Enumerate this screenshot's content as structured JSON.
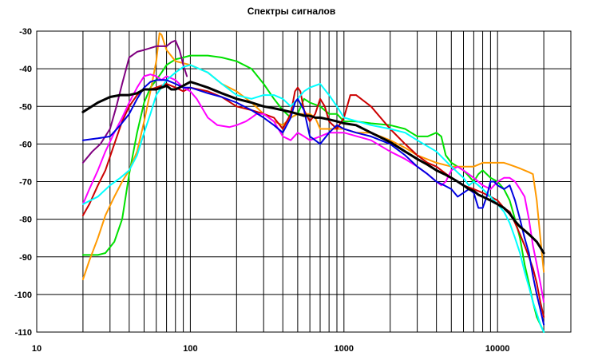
{
  "chart_data": {
    "type": "line",
    "title": "Спектры сигналов",
    "xscale": "log",
    "xlim": [
      10,
      30000
    ],
    "ylim": [
      -110,
      -30
    ],
    "grid": true,
    "yticks": [
      {
        "value": -30,
        "label": "-30"
      },
      {
        "value": -40,
        "label": "-40"
      },
      {
        "value": -50,
        "label": "-50"
      },
      {
        "value": -60,
        "label": "-60"
      },
      {
        "value": -70,
        "label": "-70"
      },
      {
        "value": -80,
        "label": "-80"
      },
      {
        "value": -90,
        "label": "-90"
      },
      {
        "value": -100,
        "label": "-100"
      },
      {
        "value": -110,
        "label": "-110"
      }
    ],
    "xticks": [
      {
        "value": 10,
        "label": "10"
      },
      {
        "value": 100,
        "label": "100"
      },
      {
        "value": 1000,
        "label": "1000"
      },
      {
        "value": 10000,
        "label": "10000"
      }
    ],
    "series": [
      {
        "name": "green",
        "color": "#00e000",
        "width": 2,
        "x": [
          20,
          25,
          28,
          32,
          36,
          40,
          45,
          50,
          55,
          60,
          65,
          70,
          80,
          90,
          100,
          130,
          160,
          200,
          250,
          300,
          350,
          400,
          450,
          500,
          550,
          600,
          700,
          800,
          900,
          1000,
          1200,
          1500,
          2000,
          2500,
          3000,
          3500,
          4000,
          4300,
          4600,
          5000,
          5500,
          6000,
          7000,
          7500,
          8000,
          8500,
          9000,
          10000,
          11000,
          12000,
          13000,
          14000,
          15000,
          16000,
          17000,
          18000,
          19000,
          20000
        ],
        "y": [
          -89.5,
          -89.5,
          -89,
          -86,
          -80,
          -68,
          -57,
          -49,
          -45,
          -43,
          -41,
          -39,
          -37.5,
          -37,
          -36.5,
          -36.5,
          -37,
          -38,
          -40,
          -44,
          -48,
          -51,
          -53,
          -52,
          -48,
          -49,
          -50,
          -52,
          -52,
          -54,
          -54,
          -54.5,
          -55,
          -56,
          -58,
          -58,
          -57,
          -58,
          -63,
          -65,
          -66,
          -67,
          -70,
          -68,
          -67,
          -68,
          -69,
          -70,
          -72,
          -75,
          -80,
          -85,
          -92,
          -97,
          -102,
          -106,
          -108,
          -110
        ]
      },
      {
        "name": "orange",
        "color": "#ff9900",
        "width": 2,
        "x": [
          20,
          22,
          25,
          28,
          32,
          36,
          40,
          45,
          50,
          55,
          60,
          63,
          65,
          70,
          80,
          100,
          130,
          160,
          200,
          250,
          300,
          350,
          400,
          450,
          500,
          550,
          600,
          650,
          700,
          800,
          900,
          1000,
          1200,
          1500,
          2000,
          2500,
          3000,
          4000,
          5000,
          6000,
          7000,
          8000,
          9000,
          10000,
          11000,
          12000,
          13000,
          14000,
          15000,
          16000,
          17000,
          18000,
          19000,
          20000
        ],
        "y": [
          -96,
          -91,
          -85,
          -79,
          -74,
          -70,
          -67,
          -62,
          -54,
          -46,
          -38,
          -30.5,
          -31,
          -35,
          -38,
          -39,
          -41,
          -44,
          -46,
          -49,
          -52,
          -54,
          -55,
          -53,
          -52,
          -52,
          -52,
          -53,
          -56,
          -56,
          -56,
          -56,
          -57,
          -57,
          -59,
          -61,
          -63,
          -65,
          -66,
          -66,
          -66,
          -65,
          -65,
          -65,
          -65,
          -65.5,
          -66,
          -66.5,
          -67,
          -67.5,
          -68,
          -75,
          -85,
          -94
        ]
      },
      {
        "name": "purple",
        "color": "#800080",
        "width": 2,
        "x": [
          20,
          23,
          26,
          30,
          33,
          36,
          40,
          45,
          50,
          55,
          60,
          65,
          70,
          75,
          80,
          85,
          90,
          95
        ],
        "y": [
          -65,
          -62,
          -60,
          -56,
          -50,
          -44,
          -37,
          -35.5,
          -35,
          -34.5,
          -34,
          -34,
          -34,
          -33,
          -32.5,
          -35,
          -39,
          -42
        ]
      },
      {
        "name": "red",
        "color": "#cc0000",
        "width": 2,
        "x": [
          20,
          22,
          25,
          28,
          32,
          36,
          40,
          45,
          50,
          55,
          60,
          70,
          80,
          90,
          100,
          130,
          160,
          200,
          250,
          300,
          350,
          400,
          450,
          480,
          500,
          520,
          550,
          600,
          650,
          700,
          750,
          800,
          900,
          1000,
          1100,
          1200,
          1500,
          2000,
          2500,
          3000,
          3500,
          4000,
          5000,
          6000,
          7000,
          8000,
          9000,
          10000,
          11000,
          12000,
          13000,
          14000,
          15000,
          16000,
          17000,
          18000,
          19000,
          20000
        ],
        "y": [
          -79,
          -76,
          -71,
          -67,
          -60,
          -54,
          -50,
          -47,
          -45.5,
          -45.5,
          -45,
          -44,
          -45,
          -46,
          -45,
          -46,
          -47.5,
          -50,
          -51,
          -52,
          -53,
          -56,
          -52,
          -46,
          -45,
          -46,
          -51,
          -54,
          -52,
          -48,
          -50,
          -54,
          -56,
          -53,
          -47,
          -47,
          -50,
          -56,
          -60,
          -63,
          -65,
          -66,
          -69,
          -71,
          -72,
          -73,
          -74,
          -75,
          -77,
          -78,
          -81,
          -84,
          -87,
          -90,
          -93,
          -97,
          -102,
          -106
        ]
      },
      {
        "name": "magenta",
        "color": "#ff00ff",
        "width": 2,
        "x": [
          20,
          22,
          25,
          28,
          32,
          36,
          40,
          45,
          50,
          55,
          60,
          65,
          70,
          80,
          90,
          100,
          110,
          130,
          150,
          180,
          200,
          230,
          250,
          270,
          300,
          350,
          400,
          450,
          500,
          550,
          600,
          700,
          800,
          1000,
          1500,
          2000,
          2500,
          3000,
          3500,
          4000,
          4300,
          4600,
          5000,
          5500,
          6000,
          7000,
          8000,
          9000,
          10000,
          11000,
          12000,
          13000,
          14000,
          15000,
          16000,
          17000,
          18000,
          19000,
          20000
        ],
        "y": [
          -76,
          -72,
          -67,
          -62,
          -57,
          -53,
          -49,
          -45,
          -42,
          -41.5,
          -42,
          -43,
          -42,
          -43,
          -45,
          -46,
          -48,
          -53,
          -55,
          -55.5,
          -55,
          -54,
          -53,
          -52,
          -52,
          -54,
          -58,
          -59,
          -57,
          -58,
          -59,
          -58,
          -57,
          -57,
          -59,
          -62,
          -64,
          -66,
          -68,
          -70,
          -71,
          -70,
          -67,
          -66,
          -67,
          -69,
          -71,
          -72,
          -70,
          -69,
          -69,
          -70,
          -72,
          -74,
          -80,
          -87,
          -92,
          -97,
          -102
        ]
      },
      {
        "name": "cyan",
        "color": "#00ffff",
        "width": 2,
        "x": [
          20,
          25,
          30,
          35,
          40,
          45,
          50,
          55,
          60,
          70,
          80,
          90,
          100,
          130,
          160,
          200,
          250,
          300,
          350,
          400,
          450,
          500,
          550,
          600,
          700,
          800,
          900,
          1000,
          1500,
          2000,
          2500,
          3000,
          4000,
          5000,
          6000,
          6500,
          7000,
          7500,
          8000,
          9000,
          10000,
          11000,
          12000,
          13000,
          14000,
          15000,
          16000,
          17000,
          18000,
          19000,
          20000
        ],
        "y": [
          -76,
          -74,
          -71,
          -69,
          -67,
          -63,
          -57,
          -52,
          -47,
          -43,
          -41,
          -39.5,
          -39,
          -41,
          -44,
          -47,
          -48,
          -47,
          -47,
          -48,
          -50,
          -48,
          -46,
          -45,
          -44,
          -47,
          -50,
          -53,
          -55,
          -56,
          -57,
          -59,
          -62,
          -66,
          -69,
          -71,
          -70,
          -71,
          -72,
          -74,
          -76,
          -78,
          -81,
          -85,
          -89,
          -94,
          -98,
          -102,
          -105,
          -108,
          -110
        ]
      },
      {
        "name": "blue",
        "color": "#0000e0",
        "width": 2,
        "x": [
          20,
          25,
          30,
          35,
          40,
          45,
          50,
          55,
          60,
          70,
          80,
          90,
          100,
          130,
          160,
          200,
          250,
          300,
          350,
          400,
          450,
          480,
          500,
          550,
          600,
          650,
          700,
          800,
          900,
          1000,
          1200,
          1500,
          2000,
          2500,
          3000,
          3500,
          4000,
          4500,
          5000,
          5500,
          6000,
          6500,
          7000,
          7500,
          8000,
          8500,
          9000,
          9500,
          10000,
          11000,
          12000,
          13000,
          14000,
          15000,
          16000,
          17000,
          18000,
          19000,
          20000
        ],
        "y": [
          -59,
          -58.5,
          -58,
          -55,
          -52,
          -48,
          -45,
          -43.5,
          -43,
          -43,
          -44,
          -45,
          -45,
          -46.5,
          -47.5,
          -49,
          -51,
          -53,
          -55,
          -57,
          -53,
          -49,
          -48,
          -51,
          -58,
          -59,
          -60,
          -57,
          -55,
          -56,
          -57,
          -58,
          -60,
          -63,
          -66,
          -68,
          -70,
          -71,
          -72,
          -74,
          -73,
          -72,
          -73,
          -77,
          -77,
          -74,
          -70,
          -70,
          -71,
          -72,
          -71,
          -75,
          -80,
          -85,
          -89,
          -95,
          -100,
          -104,
          -108
        ]
      },
      {
        "name": "black",
        "color": "#000000",
        "width": 3,
        "x": [
          20,
          25,
          30,
          35,
          40,
          45,
          50,
          55,
          60,
          65,
          70,
          75,
          80,
          85,
          90,
          100,
          110,
          130,
          160,
          200,
          250,
          300,
          350,
          400,
          450,
          500,
          550,
          600,
          650,
          700,
          800,
          900,
          1000,
          1200,
          1500,
          2000,
          2500,
          3000,
          3500,
          4000,
          4500,
          5000,
          5500,
          6000,
          6500,
          7000,
          7500,
          8000,
          9000,
          10000,
          11000,
          12000,
          13000,
          14000,
          15000,
          16000,
          17000,
          18000,
          19000,
          20000
        ],
        "y": [
          -51.5,
          -49,
          -47.5,
          -47,
          -47,
          -46.5,
          -45.5,
          -45.5,
          -45.5,
          -45,
          -44.5,
          -45.5,
          -45.5,
          -45,
          -44.5,
          -43.5,
          -44,
          -45,
          -46.5,
          -48,
          -49,
          -50,
          -50.5,
          -51,
          -51.5,
          -52,
          -52.5,
          -52.5,
          -53,
          -53,
          -53.5,
          -54,
          -54.5,
          -55,
          -57,
          -59.5,
          -62,
          -64,
          -65.5,
          -67,
          -68,
          -69,
          -70,
          -71,
          -72,
          -72.5,
          -73.5,
          -74,
          -75,
          -76,
          -77,
          -78.5,
          -80.5,
          -82,
          -83,
          -84,
          -85,
          -86,
          -87.5,
          -89
        ]
      }
    ]
  }
}
